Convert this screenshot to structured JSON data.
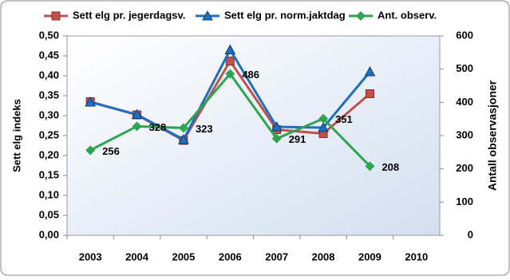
{
  "chart_data": {
    "type": "line",
    "categories": [
      "2003",
      "2004",
      "2005",
      "2006",
      "2007",
      "2008",
      "2009",
      "2010"
    ],
    "series": [
      {
        "name": "Sett elg pr. jegerdagsv.",
        "color": "#c0504d",
        "marker": "square",
        "values": [
          0.335,
          0.302,
          0.238,
          0.437,
          0.265,
          0.255,
          0.355,
          null
        ]
      },
      {
        "name": "Sett elg pr. norm.jaktdag",
        "color": "#1f6fc0",
        "marker": "triangle",
        "values": [
          0.334,
          0.303,
          0.24,
          0.465,
          0.272,
          0.27,
          0.41,
          null
        ]
      },
      {
        "name": "Ant. observ.",
        "color": "#2ea44f",
        "marker": "diamond",
        "axis": "y2",
        "values": [
          256,
          328,
          323,
          486,
          291,
          351,
          208,
          null
        ]
      }
    ],
    "ylabel": "Sett elg indeks",
    "y2label": "Antall observasjoner",
    "ylim": [
      0,
      0.5
    ],
    "yticks": [
      {
        "value": 0,
        "label": "0,00"
      },
      {
        "value": 0.05,
        "label": "0,05"
      },
      {
        "value": 0.1,
        "label": "0,10"
      },
      {
        "value": 0.15,
        "label": "0,15"
      },
      {
        "value": 0.2,
        "label": "0,20"
      },
      {
        "value": 0.25,
        "label": "0,25"
      },
      {
        "value": 0.3,
        "label": "0,30"
      },
      {
        "value": 0.35,
        "label": "0,35"
      },
      {
        "value": 0.4,
        "label": "0,40"
      },
      {
        "value": 0.45,
        "label": "0,45"
      },
      {
        "value": 0.5,
        "label": "0,50"
      }
    ],
    "y2lim": [
      0,
      600
    ],
    "y2ticks": [
      0,
      100,
      200,
      300,
      400,
      500,
      600
    ],
    "legend": "top"
  }
}
